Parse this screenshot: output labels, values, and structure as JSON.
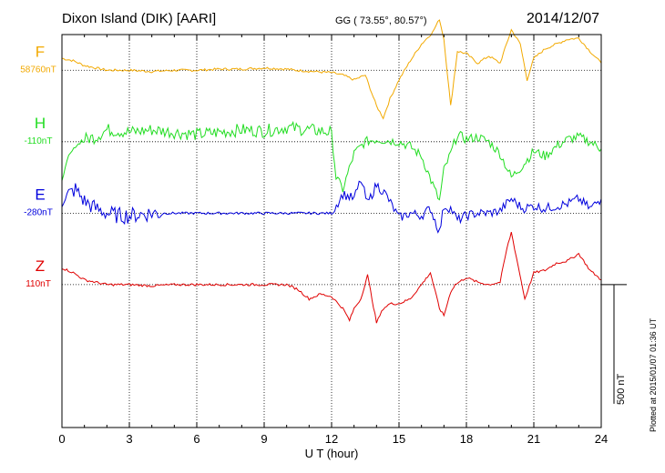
{
  "header": {
    "station": "Dixon Island (DIK)  [AARI]",
    "coords": "GG ( 73.55°,  80.57°)",
    "date": "2014/12/07"
  },
  "plotted_note": "Plotted at 2015/01/07 01:36 UT",
  "scale_label": "500 nT",
  "colors": {
    "F": "#f2a900",
    "H": "#22dd22",
    "E": "#0000dd",
    "Z": "#e00000",
    "axis": "#000000"
  },
  "chart_data": {
    "type": "line",
    "title": "",
    "xlabel": "U T (hour)",
    "ylabel": "",
    "xlim": [
      0,
      24
    ],
    "x_ticks": [
      "0",
      "3",
      "6",
      "9",
      "12",
      "15",
      "18",
      "21",
      "24"
    ],
    "ylim_nT": [
      -900,
      750
    ],
    "scale_bar_nT": 500,
    "grid": true,
    "series": [
      {
        "name": "F",
        "baseline_label": "58760nT",
        "color": "#f2a900",
        "offset_nT": 600,
        "x": [
          0,
          0.5,
          1,
          1.5,
          2,
          3,
          4,
          5,
          6,
          7,
          8,
          9,
          10,
          10.4,
          12,
          12.5,
          13,
          13.5,
          14,
          14.3,
          14.6,
          15,
          15.5,
          16,
          16.5,
          16.8,
          17,
          17.3,
          17.6,
          18,
          18.5,
          19,
          19.5,
          20,
          20.4,
          20.7,
          21,
          21.5,
          22,
          22.5,
          23,
          23.5,
          24
        ],
        "y": [
          50,
          40,
          20,
          10,
          0,
          0,
          -5,
          0,
          0,
          5,
          5,
          10,
          5,
          0,
          -10,
          -20,
          -40,
          -20,
          -150,
          -200,
          -120,
          -40,
          40,
          110,
          160,
          215,
          130,
          -150,
          80,
          70,
          30,
          60,
          30,
          170,
          110,
          -40,
          50,
          90,
          110,
          130,
          135,
          80,
          30
        ]
      },
      {
        "name": "H",
        "baseline_label": "-110nT",
        "color": "#22dd22",
        "offset_nT": 300,
        "x": [
          0,
          0.3,
          0.6,
          1,
          1.5,
          2,
          3,
          4,
          5,
          6,
          7,
          8,
          9,
          10,
          11,
          12,
          12.2,
          12.5,
          13,
          13.5,
          14,
          14.5,
          15,
          15.5,
          16,
          16.5,
          16.8,
          17,
          17.3,
          17.6,
          18,
          18.5,
          19,
          19.5,
          20,
          20.5,
          21,
          21.5,
          22,
          22.5,
          23,
          23.5,
          24
        ],
        "y": [
          -160,
          -60,
          -20,
          10,
          20,
          50,
          40,
          50,
          40,
          30,
          40,
          50,
          45,
          60,
          50,
          40,
          -150,
          -200,
          -50,
          0,
          10,
          5,
          0,
          -20,
          -60,
          -180,
          -250,
          -120,
          -50,
          30,
          10,
          20,
          0,
          -50,
          -150,
          -100,
          -40,
          -60,
          -20,
          10,
          20,
          0,
          -30
        ]
      },
      {
        "name": "E",
        "baseline_label": "-280nT",
        "color": "#0000dd",
        "offset_nT": 0,
        "x": [
          0,
          0.3,
          0.6,
          1,
          1.5,
          2,
          2.5,
          3,
          4,
          5,
          6,
          7,
          8,
          9,
          10,
          11,
          12,
          12.5,
          13,
          13.3,
          13.6,
          14,
          14.4,
          15,
          15.5,
          16,
          16.4,
          16.8,
          17,
          17.3,
          17.6,
          18,
          18.5,
          19,
          19.5,
          20,
          20.5,
          21,
          21.5,
          22,
          22.5,
          23,
          23.5,
          24
        ],
        "y": [
          30,
          80,
          100,
          50,
          20,
          0,
          -10,
          -10,
          0,
          0,
          0,
          0,
          0,
          0,
          0,
          0,
          0,
          80,
          60,
          140,
          40,
          120,
          80,
          -20,
          0,
          -10,
          20,
          -80,
          30,
          20,
          -30,
          -10,
          0,
          0,
          10,
          60,
          20,
          30,
          20,
          30,
          40,
          60,
          20,
          60
        ]
      },
      {
        "name": "Z",
        "baseline_label": "110nT",
        "color": "#e00000",
        "offset_nT": -300,
        "x": [
          0,
          0.5,
          1,
          1.5,
          2,
          3,
          4,
          5,
          6,
          7,
          8,
          9,
          10,
          10.5,
          11,
          11.5,
          12,
          12.5,
          12.8,
          13,
          13.3,
          13.6,
          14,
          14.3,
          14.6,
          15,
          15.5,
          16,
          16.4,
          16.8,
          17,
          17.3,
          17.5,
          18,
          18.5,
          19,
          19.5,
          19.8,
          20,
          20.3,
          20.6,
          21,
          21.5,
          22,
          22.5,
          23,
          23.5,
          24
        ],
        "y": [
          70,
          50,
          20,
          10,
          0,
          0,
          -5,
          0,
          0,
          0,
          0,
          0,
          0,
          -20,
          -60,
          -40,
          -50,
          -100,
          -150,
          -100,
          -60,
          40,
          -160,
          -100,
          -80,
          -80,
          -60,
          0,
          50,
          -100,
          -130,
          -30,
          0,
          30,
          10,
          0,
          10,
          150,
          220,
          80,
          -60,
          50,
          60,
          90,
          100,
          130,
          60,
          20
        ]
      }
    ]
  }
}
